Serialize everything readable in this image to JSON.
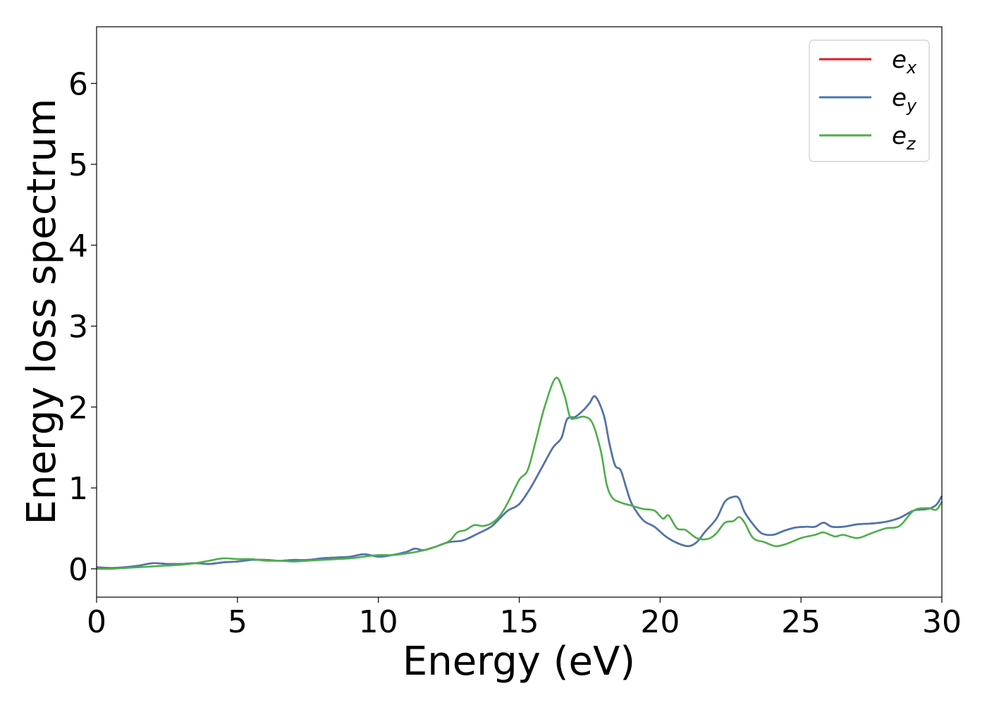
{
  "chart_data": {
    "type": "line",
    "xlabel": "Energy (eV)",
    "ylabel": "Energy loss spectrum",
    "xlim": [
      0,
      30
    ],
    "ylim": [
      -0.35,
      6.7
    ],
    "xticks": [
      0,
      5,
      10,
      15,
      20,
      25,
      30
    ],
    "xtick_labels": [
      "0",
      "5",
      "10",
      "15",
      "20",
      "25",
      "30"
    ],
    "yticks": [
      0,
      1,
      2,
      3,
      4,
      5,
      6
    ],
    "ytick_labels": [
      "0",
      "1",
      "2",
      "3",
      "4",
      "5",
      "6"
    ],
    "grid": false,
    "legend_position": "top-right",
    "series": [
      {
        "name": "e",
        "subscript": "x",
        "color": "#e41a1c",
        "x": [
          0,
          0.5,
          1,
          1.5,
          2,
          2.5,
          3,
          3.5,
          4,
          4.5,
          5,
          5.5,
          6,
          6.5,
          7,
          7.5,
          8,
          8.5,
          9,
          9.5,
          10,
          10.5,
          11,
          11.3,
          11.6,
          12,
          12.5,
          13,
          13.5,
          14,
          14.3,
          14.6,
          15,
          15.4,
          15.8,
          16.2,
          16.5,
          16.7,
          17,
          17.3,
          17.5,
          17.7,
          18,
          18.2,
          18.4,
          18.6,
          18.8,
          19,
          19.4,
          19.8,
          20.2,
          20.6,
          21,
          21.3,
          21.6,
          22,
          22.3,
          22.6,
          22.8,
          23,
          23.3,
          23.6,
          24,
          24.4,
          24.8,
          25.2,
          25.5,
          25.8,
          26.1,
          26.5,
          27,
          27.5,
          28,
          28.5,
          29,
          29.5,
          29.8,
          30
        ],
        "values": [
          0.02,
          0.01,
          0.02,
          0.04,
          0.07,
          0.06,
          0.06,
          0.07,
          0.06,
          0.08,
          0.09,
          0.11,
          0.11,
          0.1,
          0.11,
          0.11,
          0.13,
          0.14,
          0.15,
          0.18,
          0.15,
          0.17,
          0.21,
          0.25,
          0.23,
          0.27,
          0.33,
          0.35,
          0.43,
          0.52,
          0.62,
          0.72,
          0.8,
          1.0,
          1.25,
          1.5,
          1.62,
          1.85,
          1.88,
          1.97,
          2.05,
          2.13,
          1.9,
          1.55,
          1.28,
          1.22,
          1.0,
          0.8,
          0.6,
          0.52,
          0.4,
          0.32,
          0.28,
          0.33,
          0.46,
          0.62,
          0.83,
          0.89,
          0.87,
          0.7,
          0.55,
          0.44,
          0.42,
          0.47,
          0.51,
          0.52,
          0.52,
          0.57,
          0.52,
          0.52,
          0.55,
          0.56,
          0.58,
          0.63,
          0.72,
          0.74,
          0.79,
          0.9
        ]
      },
      {
        "name": "e",
        "subscript": "y",
        "color": "#4a78b0",
        "x": [
          0,
          0.5,
          1,
          1.5,
          2,
          2.5,
          3,
          3.5,
          4,
          4.5,
          5,
          5.5,
          6,
          6.5,
          7,
          7.5,
          8,
          8.5,
          9,
          9.5,
          10,
          10.5,
          11,
          11.3,
          11.6,
          12,
          12.5,
          13,
          13.5,
          14,
          14.3,
          14.6,
          15,
          15.4,
          15.8,
          16.2,
          16.5,
          16.7,
          17,
          17.3,
          17.5,
          17.7,
          18,
          18.2,
          18.4,
          18.6,
          18.8,
          19,
          19.4,
          19.8,
          20.2,
          20.6,
          21,
          21.3,
          21.6,
          22,
          22.3,
          22.6,
          22.8,
          23,
          23.3,
          23.6,
          24,
          24.4,
          24.8,
          25.2,
          25.5,
          25.8,
          26.1,
          26.5,
          27,
          27.5,
          28,
          28.5,
          29,
          29.5,
          29.8,
          30
        ],
        "values": [
          0.02,
          0.01,
          0.02,
          0.04,
          0.07,
          0.06,
          0.06,
          0.07,
          0.06,
          0.08,
          0.09,
          0.11,
          0.11,
          0.1,
          0.11,
          0.11,
          0.13,
          0.14,
          0.15,
          0.18,
          0.15,
          0.17,
          0.21,
          0.25,
          0.23,
          0.27,
          0.33,
          0.35,
          0.43,
          0.52,
          0.62,
          0.72,
          0.8,
          1.0,
          1.25,
          1.5,
          1.62,
          1.85,
          1.88,
          1.97,
          2.05,
          2.13,
          1.9,
          1.55,
          1.28,
          1.22,
          1.0,
          0.8,
          0.6,
          0.52,
          0.4,
          0.32,
          0.28,
          0.33,
          0.46,
          0.62,
          0.83,
          0.89,
          0.87,
          0.7,
          0.55,
          0.44,
          0.42,
          0.47,
          0.51,
          0.52,
          0.52,
          0.57,
          0.52,
          0.52,
          0.55,
          0.56,
          0.58,
          0.63,
          0.72,
          0.74,
          0.79,
          0.9
        ]
      },
      {
        "name": "e",
        "subscript": "z",
        "color": "#4daf4a",
        "x": [
          0,
          0.5,
          1,
          1.5,
          2,
          2.5,
          3,
          3.5,
          4,
          4.5,
          5,
          5.5,
          6,
          6.5,
          7,
          7.5,
          8,
          8.5,
          9,
          9.5,
          10,
          10.5,
          11,
          11.5,
          12,
          12.5,
          12.8,
          13.1,
          13.4,
          13.7,
          14,
          14.3,
          14.6,
          15,
          15.3,
          15.6,
          15.9,
          16.3,
          16.6,
          16.8,
          17,
          17.3,
          17.6,
          17.9,
          18.1,
          18.3,
          18.6,
          19,
          19.4,
          19.8,
          20.1,
          20.3,
          20.6,
          20.9,
          21.3,
          21.7,
          22,
          22.3,
          22.6,
          22.8,
          23,
          23.3,
          23.7,
          24.1,
          24.5,
          25,
          25.5,
          25.8,
          26.2,
          26.5,
          27,
          27.5,
          28,
          28.5,
          29,
          29.5,
          29.8,
          30
        ],
        "values": [
          0.0,
          0.0,
          0.01,
          0.02,
          0.03,
          0.04,
          0.05,
          0.07,
          0.1,
          0.13,
          0.12,
          0.12,
          0.1,
          0.1,
          0.09,
          0.1,
          0.11,
          0.12,
          0.13,
          0.15,
          0.17,
          0.17,
          0.19,
          0.22,
          0.27,
          0.34,
          0.45,
          0.48,
          0.54,
          0.53,
          0.56,
          0.65,
          0.82,
          1.1,
          1.22,
          1.6,
          2.0,
          2.36,
          2.15,
          1.88,
          1.86,
          1.88,
          1.8,
          1.45,
          1.05,
          0.88,
          0.82,
          0.78,
          0.74,
          0.72,
          0.62,
          0.66,
          0.5,
          0.48,
          0.38,
          0.37,
          0.44,
          0.57,
          0.59,
          0.64,
          0.57,
          0.38,
          0.33,
          0.28,
          0.31,
          0.38,
          0.42,
          0.45,
          0.4,
          0.42,
          0.38,
          0.44,
          0.5,
          0.53,
          0.72,
          0.75,
          0.73,
          0.83
        ]
      }
    ]
  }
}
